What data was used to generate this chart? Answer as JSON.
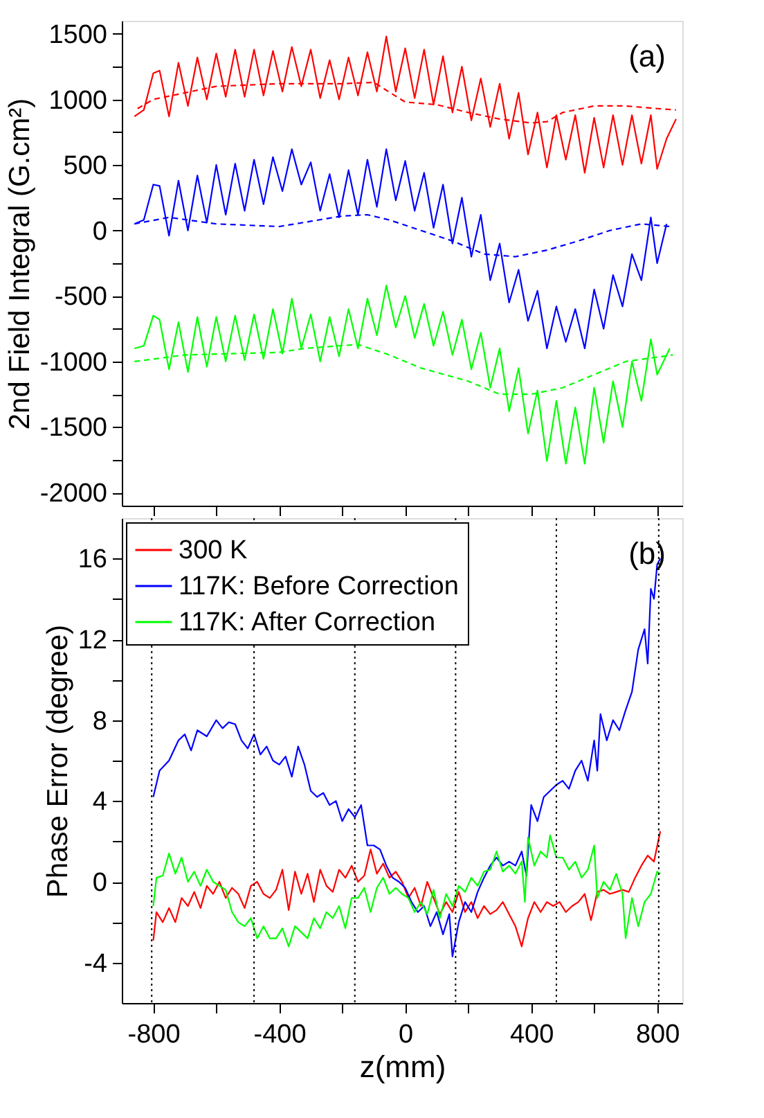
{
  "chart_data": [
    {
      "type": "line",
      "ylabel": "2nd Field Integral (G.cm²)",
      "annotations": [
        "(a)"
      ],
      "xlim": [
        -900,
        880
      ],
      "xticks": [
        -800,
        {
          "value": -600,
          "label": null
        },
        -400,
        {
          "value": -200,
          "label": null
        },
        0,
        {
          "value": 200,
          "label": null
        },
        400,
        {
          "value": 600,
          "label": null
        },
        800
      ],
      "ylim": [
        -2100,
        1600
      ],
      "yticks": [
        -2000,
        {
          "value": -1750,
          "label": null
        },
        -1500,
        {
          "value": -1250,
          "label": null
        },
        -1000,
        {
          "value": -750,
          "label": null
        },
        -500,
        {
          "value": -250,
          "label": null
        },
        0,
        {
          "value": 250,
          "label": null
        },
        500,
        {
          "value": 750,
          "label": null
        },
        1000,
        {
          "value": 1250,
          "label": null
        },
        1500
      ],
      "tick_labels": "y",
      "grid": false,
      "series": [
        {
          "color": "#ff0000",
          "line_style": "solid",
          "x": [
            -860,
            -830,
            -800,
            -780,
            -750,
            -720,
            -690,
            -660,
            -630,
            -600,
            -570,
            -540,
            -510,
            -480,
            -450,
            -420,
            -390,
            -360,
            -330,
            -300,
            -270,
            -240,
            -210,
            -180,
            -150,
            -120,
            -90,
            -60,
            -30,
            0,
            30,
            60,
            90,
            120,
            150,
            180,
            210,
            240,
            270,
            300,
            330,
            360,
            390,
            420,
            450,
            480,
            510,
            540,
            570,
            600,
            630,
            660,
            690,
            720,
            750,
            780,
            800,
            830,
            860
          ],
          "values": [
            870,
            920,
            1200,
            1220,
            870,
            1280,
            950,
            1320,
            1000,
            1350,
            1020,
            1380,
            1020,
            1380,
            1030,
            1370,
            1060,
            1400,
            1100,
            1380,
            1010,
            1300,
            1000,
            1320,
            1030,
            1360,
            1060,
            1480,
            1060,
            1390,
            1010,
            1380,
            960,
            1330,
            900,
            1250,
            840,
            1160,
            790,
            1120,
            700,
            1050,
            580,
            900,
            480,
            880,
            540,
            880,
            440,
            860,
            480,
            880,
            500,
            880,
            510,
            880,
            470,
            700,
            850
          ]
        },
        {
          "color": "#ff0000",
          "line_style": "dashed",
          "x": [
            -850,
            -800,
            -600,
            -400,
            -200,
            -100,
            0,
            100,
            200,
            300,
            400,
            450,
            500,
            600,
            700,
            800,
            860
          ],
          "values": [
            930,
            1000,
            1100,
            1120,
            1120,
            1130,
            980,
            960,
            900,
            850,
            820,
            830,
            900,
            950,
            950,
            930,
            920
          ]
        },
        {
          "color": "#0000ff",
          "line_style": "solid",
          "x": [
            -860,
            -830,
            -800,
            -780,
            -750,
            -720,
            -690,
            -660,
            -630,
            -600,
            -570,
            -540,
            -510,
            -480,
            -450,
            -420,
            -390,
            -360,
            -330,
            -300,
            -270,
            -240,
            -210,
            -180,
            -150,
            -120,
            -90,
            -60,
            -30,
            0,
            30,
            60,
            90,
            120,
            150,
            180,
            210,
            240,
            270,
            300,
            330,
            360,
            390,
            420,
            450,
            480,
            510,
            540,
            570,
            600,
            630,
            660,
            690,
            720,
            750,
            780,
            800,
            830
          ],
          "values": [
            50,
            80,
            350,
            340,
            -40,
            380,
            0,
            420,
            60,
            500,
            120,
            510,
            150,
            540,
            200,
            560,
            300,
            620,
            350,
            520,
            150,
            430,
            100,
            460,
            120,
            540,
            180,
            620,
            230,
            530,
            150,
            440,
            20,
            350,
            -100,
            250,
            -200,
            120,
            -380,
            -100,
            -550,
            -300,
            -690,
            -460,
            -900,
            -580,
            -850,
            -600,
            -900,
            -450,
            -750,
            -340,
            -580,
            -180,
            -380,
            100,
            -250,
            50
          ]
        },
        {
          "color": "#0000ff",
          "line_style": "dashed",
          "x": [
            -860,
            -750,
            -600,
            -400,
            -300,
            -200,
            -120,
            -50,
            50,
            150,
            250,
            350,
            450,
            550,
            650,
            750,
            840
          ],
          "values": [
            50,
            100,
            50,
            30,
            70,
            110,
            120,
            80,
            0,
            -80,
            -180,
            -200,
            -150,
            -80,
            0,
            50,
            30
          ]
        },
        {
          "color": "#00ff00",
          "line_style": "solid",
          "x": [
            -860,
            -830,
            -800,
            -780,
            -750,
            -720,
            -690,
            -660,
            -630,
            -600,
            -570,
            -540,
            -510,
            -480,
            -450,
            -420,
            -390,
            -360,
            -330,
            -300,
            -270,
            -240,
            -210,
            -180,
            -150,
            -120,
            -90,
            -60,
            -30,
            0,
            30,
            60,
            90,
            120,
            150,
            180,
            210,
            240,
            270,
            300,
            330,
            360,
            390,
            420,
            450,
            480,
            510,
            540,
            570,
            600,
            630,
            660,
            690,
            720,
            750,
            780,
            800,
            840
          ],
          "values": [
            -900,
            -880,
            -650,
            -680,
            -1060,
            -700,
            -1080,
            -660,
            -1040,
            -660,
            -1000,
            -650,
            -990,
            -640,
            -980,
            -600,
            -940,
            -520,
            -900,
            -640,
            -1000,
            -660,
            -960,
            -600,
            -900,
            -520,
            -800,
            -420,
            -740,
            -500,
            -820,
            -560,
            -880,
            -620,
            -950,
            -680,
            -1060,
            -780,
            -1200,
            -900,
            -1380,
            -1050,
            -1550,
            -1220,
            -1760,
            -1300,
            -1780,
            -1350,
            -1780,
            -1200,
            -1620,
            -1150,
            -1500,
            -1000,
            -1300,
            -830,
            -1100,
            -900
          ]
        },
        {
          "color": "#00ff00",
          "line_style": "dashed",
          "x": [
            -860,
            -700,
            -400,
            -320,
            -150,
            -50,
            50,
            200,
            300,
            400,
            500,
            600,
            700,
            850
          ],
          "values": [
            -1000,
            -950,
            -930,
            -900,
            -870,
            -950,
            -1050,
            -1150,
            -1250,
            -1250,
            -1200,
            -1100,
            -1000,
            -950
          ]
        }
      ]
    },
    {
      "type": "line",
      "xlabel": "z(mm)",
      "ylabel": "Phase Error (degree)",
      "annotations": [
        "(b)"
      ],
      "xlim": [
        -900,
        880
      ],
      "xticks": [
        -800,
        {
          "value": -600,
          "label": null
        },
        -400,
        {
          "value": -200,
          "label": null
        },
        0,
        {
          "value": 200,
          "label": null
        },
        400,
        {
          "value": 600,
          "label": null
        },
        800
      ],
      "ylim": [
        -6,
        18
      ],
      "yticks": [
        -4,
        {
          "value": -2,
          "label": null
        },
        0,
        {
          "value": 2,
          "label": null
        },
        4,
        {
          "value": 6,
          "label": null
        },
        8,
        {
          "value": 10,
          "label": null
        },
        12,
        {
          "value": 14,
          "label": null
        },
        16
      ],
      "grid": false,
      "legend": "top left",
      "ref_lines": [
        {
          "axis": "x",
          "value": -805,
          "color": "#000000",
          "line_style": "dotted"
        },
        {
          "axis": "x",
          "value": -480,
          "color": "#000000",
          "line_style": "dotted"
        },
        {
          "axis": "x",
          "value": -160,
          "color": "#000000",
          "line_style": "dotted"
        },
        {
          "axis": "x",
          "value": 160,
          "color": "#000000",
          "line_style": "dotted"
        },
        {
          "axis": "x",
          "value": 480,
          "color": "#000000",
          "line_style": "dotted"
        },
        {
          "axis": "x",
          "value": 805,
          "color": "#000000",
          "line_style": "dotted"
        }
      ],
      "series": [
        {
          "name": "300 K",
          "color": "#ff0000",
          "line_style": "solid",
          "x": [
            -800,
            -790,
            -770,
            -750,
            -730,
            -710,
            -690,
            -670,
            -650,
            -630,
            -610,
            -590,
            -570,
            -550,
            -530,
            -510,
            -490,
            -470,
            -450,
            -430,
            -410,
            -390,
            -370,
            -350,
            -330,
            -310,
            -290,
            -270,
            -250,
            -230,
            -210,
            -190,
            -170,
            -150,
            -130,
            -110,
            -90,
            -70,
            -50,
            -30,
            -10,
            10,
            30,
            50,
            70,
            90,
            110,
            130,
            150,
            170,
            190,
            210,
            230,
            250,
            270,
            290,
            310,
            330,
            350,
            370,
            390,
            410,
            430,
            450,
            470,
            490,
            510,
            530,
            550,
            570,
            590,
            610,
            630,
            650,
            670,
            690,
            710,
            730,
            750,
            770,
            790,
            810
          ],
          "values": [
            -2.9,
            -1.5,
            -2.0,
            -1.3,
            -2.0,
            -0.8,
            -1.2,
            -0.5,
            -1.3,
            -0.2,
            -0.6,
            0.0,
            -0.8,
            -0.3,
            -0.6,
            -1.3,
            -0.2,
            0.0,
            -0.6,
            -0.8,
            -0.4,
            0.6,
            -1.4,
            0.5,
            -0.6,
            0.4,
            -1.0,
            0.6,
            -0.2,
            -0.5,
            0.6,
            0.2,
            0.8,
            0.0,
            0.3,
            1.6,
            0.4,
            0.9,
            0.2,
            0.5,
            0.0,
            -0.8,
            -0.3,
            -1.2,
            0.0,
            -0.8,
            -1.6,
            -1.0,
            -1.5,
            -0.5,
            -1.5,
            -1.0,
            -1.8,
            -1.2,
            -1.6,
            -1.4,
            -1.0,
            -1.6,
            -2.2,
            -3.2,
            -1.8,
            -1.0,
            -1.5,
            -1.0,
            -1.2,
            -1.0,
            -1.5,
            -1.2,
            -1.0,
            -0.6,
            -1.9,
            -0.5,
            -0.4,
            -0.6,
            -0.5,
            -0.4,
            -0.5,
            0.2,
            0.8,
            1.3,
            1.0,
            2.5
          ]
        },
        {
          "name": "117K: Before Correction",
          "color": "#0000ff",
          "line_style": "solid",
          "x": [
            -800,
            -780,
            -750,
            -720,
            -700,
            -680,
            -660,
            -630,
            -600,
            -580,
            -560,
            -540,
            -520,
            -500,
            -480,
            -460,
            -440,
            -420,
            -400,
            -380,
            -360,
            -340,
            -320,
            -300,
            -280,
            -260,
            -240,
            -220,
            -200,
            -180,
            -160,
            -140,
            -120,
            -100,
            -80,
            -60,
            -40,
            -20,
            0,
            20,
            40,
            60,
            80,
            100,
            120,
            140,
            150,
            170,
            190,
            210,
            230,
            250,
            270,
            290,
            310,
            330,
            350,
            370,
            385,
            400,
            420,
            440,
            460,
            480,
            500,
            520,
            540,
            560,
            580,
            600,
            610,
            620,
            640,
            660,
            680,
            700,
            720,
            740,
            760,
            770,
            780,
            790,
            800,
            810
          ],
          "values": [
            4.2,
            5.5,
            6.0,
            7.0,
            7.3,
            6.5,
            7.5,
            7.2,
            8.0,
            7.6,
            7.9,
            7.8,
            7.0,
            6.6,
            7.3,
            6.3,
            6.7,
            6.0,
            5.8,
            6.2,
            5.2,
            6.7,
            5.8,
            4.5,
            4.2,
            4.4,
            3.8,
            4.0,
            3.0,
            3.6,
            3.2,
            3.8,
            1.8,
            1.8,
            1.6,
            0.8,
            0.2,
            0.0,
            -0.3,
            -1.0,
            -1.5,
            -1.2,
            -2.2,
            -1.5,
            -2.6,
            -1.6,
            -3.7,
            -2.0,
            -1.0,
            -1.5,
            -0.5,
            0.2,
            0.8,
            1.2,
            0.8,
            1.0,
            0.8,
            1.5,
            0.3,
            3.8,
            3.0,
            4.2,
            4.5,
            4.8,
            5.0,
            4.6,
            5.5,
            6.0,
            5.0,
            7.0,
            5.5,
            8.3,
            7.0,
            8.0,
            7.5,
            8.5,
            9.4,
            11.5,
            12.5,
            10.8,
            14.5,
            14.0,
            15.7,
            16.0
          ]
        },
        {
          "name": "117K: After Correction",
          "color": "#00ff00",
          "line_style": "solid",
          "x": [
            -800,
            -790,
            -770,
            -750,
            -730,
            -710,
            -690,
            -670,
            -650,
            -630,
            -610,
            -590,
            -570,
            -550,
            -530,
            -510,
            -490,
            -470,
            -450,
            -430,
            -410,
            -390,
            -370,
            -350,
            -330,
            -310,
            -290,
            -270,
            -250,
            -230,
            -210,
            -190,
            -170,
            -150,
            -130,
            -110,
            -90,
            -70,
            -50,
            -30,
            -10,
            10,
            30,
            50,
            70,
            90,
            110,
            130,
            150,
            170,
            190,
            210,
            230,
            250,
            270,
            290,
            310,
            330,
            350,
            370,
            380,
            390,
            410,
            430,
            450,
            460,
            480,
            500,
            520,
            540,
            560,
            580,
            600,
            610,
            630,
            650,
            670,
            690,
            700,
            720,
            740,
            760,
            780,
            800,
            810
          ],
          "values": [
            -1.2,
            0.2,
            0.3,
            1.4,
            0.4,
            1.2,
            0.0,
            0.5,
            -0.2,
            0.6,
            0.0,
            -0.2,
            -0.4,
            -1.5,
            -2.0,
            -2.2,
            -1.8,
            -2.8,
            -2.2,
            -2.8,
            -2.8,
            -2.3,
            -3.2,
            -2.2,
            -2.5,
            -2.8,
            -1.8,
            -2.3,
            -1.5,
            -1.8,
            -1.2,
            -2.3,
            -0.8,
            -0.8,
            -0.3,
            -1.5,
            -0.3,
            0.2,
            -0.6,
            -0.3,
            -0.6,
            -0.8,
            -1.5,
            -1.0,
            -1.6,
            -0.4,
            -1.8,
            -0.6,
            -1.2,
            -0.2,
            -0.5,
            0.2,
            -0.2,
            0.5,
            0.6,
            1.5,
            0.5,
            0.8,
            0.4,
            1.0,
            -1.0,
            2.2,
            0.8,
            1.5,
            1.2,
            2.3,
            1.2,
            1.2,
            0.6,
            1.0,
            0.2,
            0.6,
            1.8,
            -0.8,
            0.0,
            -0.4,
            0.4,
            -0.6,
            -2.8,
            -0.8,
            -2.2,
            -1.0,
            -0.6,
            0.5,
            0.4
          ]
        }
      ]
    }
  ]
}
